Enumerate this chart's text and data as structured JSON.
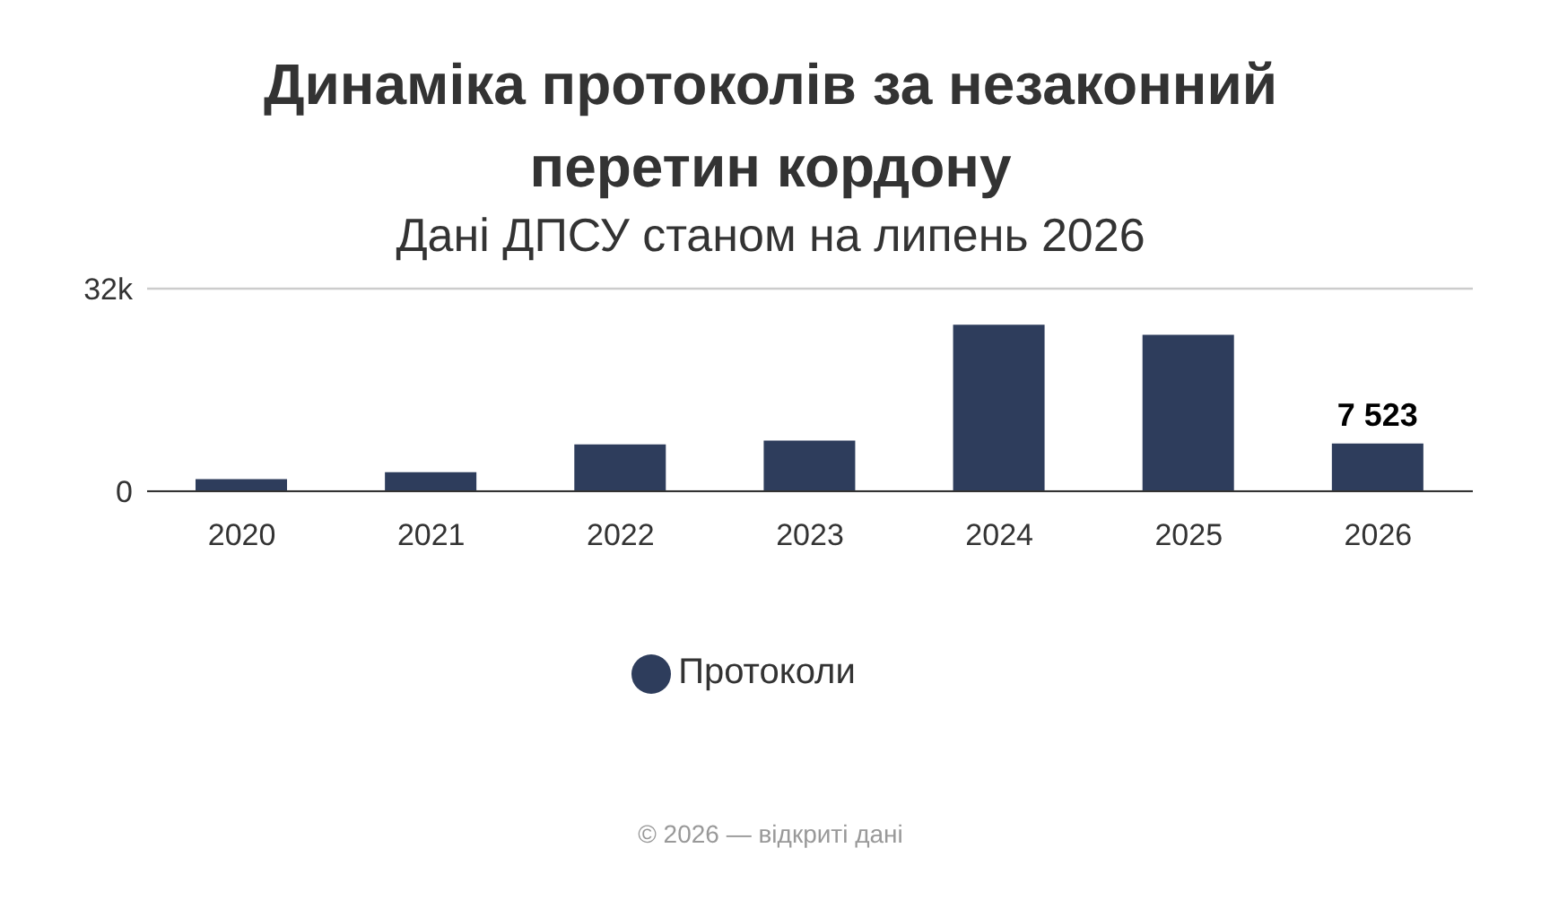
{
  "chart_data": {
    "type": "bar",
    "title": "Динаміка протоколів за незаконний перетин кордону",
    "subtitle": "Дані ДПСУ станом на липень 2026",
    "categories": [
      "2020",
      "2021",
      "2022",
      "2023",
      "2024",
      "2025",
      "2026"
    ],
    "series": [
      {
        "name": "Протоколи",
        "color": "#2e3d5c",
        "values": [
          1900,
          3000,
          7400,
          8000,
          26300,
          24700,
          7523
        ],
        "value_labels": [
          null,
          null,
          null,
          null,
          null,
          null,
          "7 523"
        ]
      }
    ],
    "ylim": [
      0,
      32000
    ],
    "yticks": [
      0,
      {
        "value": 32000,
        "label": "32k"
      }
    ],
    "grid": "y",
    "legend": "bottom",
    "annotations": [
      "© 2026 — відкриті дані"
    ]
  }
}
